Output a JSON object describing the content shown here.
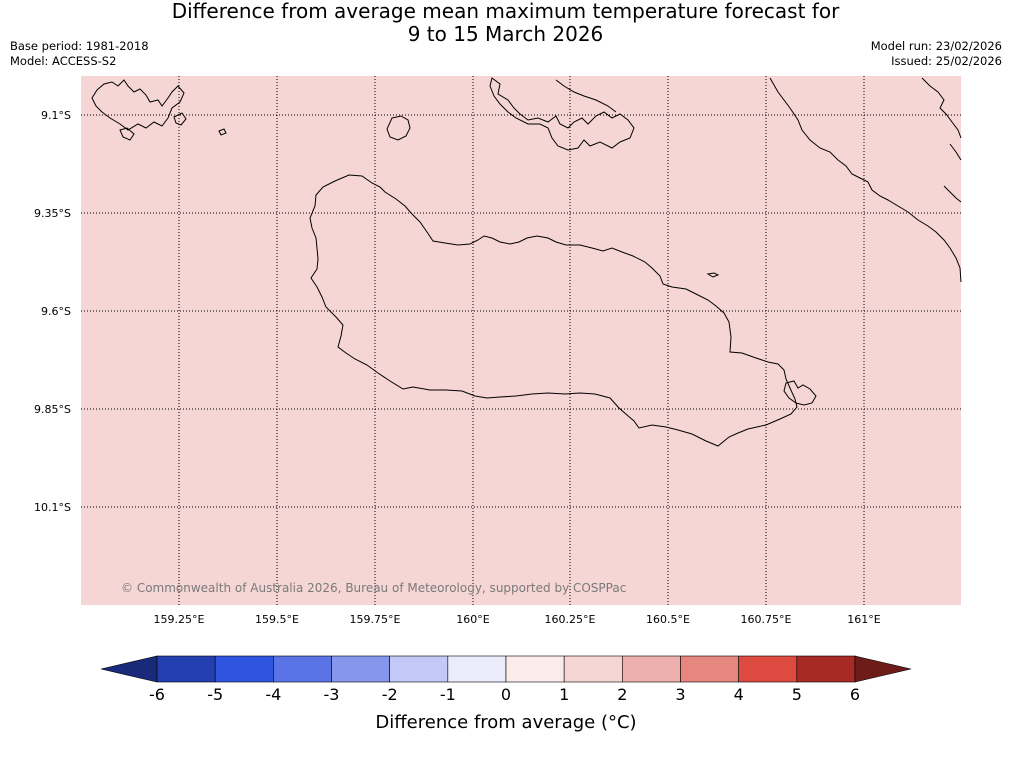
{
  "header": {
    "title_line1": "Difference from average mean maximum temperature forecast for",
    "title_line2": "9 to 15 March 2026",
    "base_period": "Base period: 1981-2018",
    "model": "Model: ACCESS-S2",
    "model_run": "Model run: 23/02/2026",
    "issued": "Issued: 25/02/2026"
  },
  "map": {
    "fill_color": "#f5d6d4",
    "lat_labels": [
      "9.1°S",
      "9.35°S",
      "9.6°S",
      "9.85°S",
      "10.1°S"
    ],
    "lon_labels": [
      "159.25°E",
      "159.5°E",
      "159.75°E",
      "160°E",
      "160.25°E",
      "160.5°E",
      "160.75°E",
      "161°E"
    ],
    "copyright": "© Commonwealth of Australia 2026, Bureau of Meteorology, supported by COSPPac"
  },
  "colorbar": {
    "title": "Difference from average (°C)",
    "tick_labels": [
      "-6",
      "-5",
      "-4",
      "-3",
      "-2",
      "-1",
      "0",
      "1",
      "2",
      "3",
      "4",
      "5",
      "6"
    ],
    "under_color": "#1a2a7a",
    "over_color": "#6e1c1a",
    "bins": [
      {
        "range": "-6 to -5",
        "color": "#2440b0"
      },
      {
        "range": "-5 to -4",
        "color": "#2f55e0"
      },
      {
        "range": "-4 to -3",
        "color": "#5a74e6"
      },
      {
        "range": "-3 to -2",
        "color": "#8696ec"
      },
      {
        "range": "-2 to -1",
        "color": "#c2c9f6"
      },
      {
        "range": "-1 to 0",
        "color": "#eaecfc"
      },
      {
        "range": "0 to 1",
        "color": "#fcebeb"
      },
      {
        "range": "1 to 2",
        "color": "#f5d6d4"
      },
      {
        "range": "2 to 3",
        "color": "#eeb0ac"
      },
      {
        "range": "3 to 4",
        "color": "#e6877f"
      },
      {
        "range": "4 to 5",
        "color": "#dc4a40"
      },
      {
        "range": "5 to 6",
        "color": "#a82a24"
      }
    ]
  }
}
